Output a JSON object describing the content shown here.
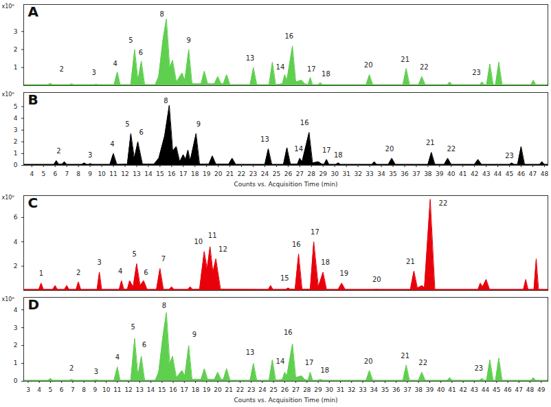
{
  "chart_data": [
    {
      "type": "area",
      "title": "A",
      "ylabel": "x10⁶",
      "color": "#5fcf4f",
      "tick_labels": "y",
      "xlim": [
        2.6,
        49.6
      ],
      "ylim": [
        0,
        4.5
      ],
      "yticks": [
        1,
        2,
        3
      ],
      "x": [
        2.6,
        4.8,
        5.0,
        5.2,
        6.7,
        6.9,
        7.1,
        8.9,
        9.1,
        9.3,
        10.7,
        11.0,
        11.25,
        12.2,
        12.55,
        12.85,
        13.15,
        13.45,
        14.4,
        14.7,
        15.1,
        15.4,
        15.7,
        15.95,
        16.3,
        16.8,
        17.05,
        17.4,
        17.7,
        18.5,
        18.8,
        19.1,
        19.7,
        20.0,
        20.3,
        20.5,
        20.8,
        21.1,
        22.9,
        23.2,
        23.5,
        24.6,
        24.9,
        25.2,
        25.8,
        26.0,
        26.2,
        26.7,
        27.0,
        27.5,
        27.8,
        28.1,
        28.3,
        28.5,
        29.0,
        29.2,
        29.4,
        33.3,
        33.6,
        33.9,
        36.6,
        36.9,
        37.2,
        38.0,
        38.3,
        38.6,
        40.6,
        40.8,
        41.0,
        43.5,
        43.7,
        43.9,
        44.1,
        44.4,
        44.7,
        44.9,
        45.2,
        45.5,
        48.1,
        48.3,
        48.5,
        49.6
      ],
      "values": [
        0.05,
        0.05,
        0.12,
        0.05,
        0.05,
        0.1,
        0.05,
        0.05,
        0.08,
        0.05,
        0.05,
        0.75,
        0.05,
        0.05,
        2.0,
        0.3,
        1.35,
        0.05,
        0.05,
        0.5,
        2.6,
        3.7,
        1.0,
        1.4,
        0.2,
        0.7,
        0.3,
        2.0,
        0.1,
        0.1,
        0.8,
        0.1,
        0.1,
        0.5,
        0.1,
        0.1,
        0.6,
        0.05,
        0.05,
        1.0,
        0.05,
        0.05,
        1.3,
        0.05,
        0.1,
        0.6,
        0.3,
        2.2,
        0.2,
        0.3,
        0.1,
        0.05,
        0.45,
        0.05,
        0.05,
        0.15,
        0.05,
        0.05,
        0.6,
        0.05,
        0.05,
        0.95,
        0.05,
        0.05,
        0.5,
        0.05,
        0.05,
        0.2,
        0.05,
        0.05,
        0.2,
        0.05,
        0.05,
        1.2,
        0.05,
        0.05,
        1.3,
        0.05,
        0.05,
        0.3,
        0.05,
        0.05
      ],
      "annotations": [
        {
          "text": "2",
          "x": 6.0,
          "y": 0.8
        },
        {
          "text": "3",
          "x": 8.9,
          "y": 0.6
        },
        {
          "text": "4",
          "x": 10.8,
          "y": 1.1
        },
        {
          "text": "5",
          "x": 12.2,
          "y": 2.4
        },
        {
          "text": "6",
          "x": 13.1,
          "y": 1.7
        },
        {
          "text": "8",
          "x": 15.0,
          "y": 3.85
        },
        {
          "text": "9",
          "x": 17.4,
          "y": 2.4
        },
        {
          "text": "13",
          "x": 22.9,
          "y": 1.4
        },
        {
          "text": "14",
          "x": 25.6,
          "y": 0.9
        },
        {
          "text": "16",
          "x": 26.4,
          "y": 2.6
        },
        {
          "text": "17",
          "x": 28.4,
          "y": 0.8
        },
        {
          "text": "18",
          "x": 29.7,
          "y": 0.5
        },
        {
          "text": "20",
          "x": 33.5,
          "y": 1.0
        },
        {
          "text": "21",
          "x": 36.8,
          "y": 1.3
        },
        {
          "text": "22",
          "x": 38.5,
          "y": 0.9
        },
        {
          "text": "23",
          "x": 43.2,
          "y": 0.6
        }
      ]
    },
    {
      "type": "area",
      "title": "B",
      "ylabel": "x10⁶",
      "color": "#000000",
      "x_label": "Counts vs. Acquisition Time (min)",
      "xlim": [
        3.3,
        48.3
      ],
      "ylim": [
        0,
        6.2
      ],
      "yticks": [
        0,
        1,
        2,
        3,
        4,
        5
      ],
      "xticks": [
        4,
        5,
        6,
        7,
        8,
        9,
        10,
        11,
        12,
        13,
        14,
        15,
        16,
        17,
        18,
        19,
        20,
        21,
        22,
        23,
        24,
        25,
        26,
        27,
        28,
        29,
        30,
        31,
        32,
        33,
        34,
        35,
        36,
        37,
        38,
        39,
        40,
        41,
        42,
        43,
        44,
        45,
        46,
        47,
        48
      ],
      "x": [
        3.3,
        5.9,
        6.1,
        6.3,
        6.6,
        6.8,
        7.0,
        8.3,
        8.5,
        8.7,
        8.9,
        9.0,
        9.2,
        10.7,
        11.0,
        11.3,
        12.2,
        12.5,
        12.8,
        13.1,
        13.5,
        14.5,
        14.9,
        15.4,
        15.8,
        16.1,
        16.4,
        16.7,
        17.0,
        17.2,
        17.4,
        17.6,
        18.1,
        18.4,
        19.2,
        19.5,
        19.8,
        20.9,
        21.2,
        21.5,
        24.0,
        24.3,
        24.6,
        25.6,
        25.9,
        26.2,
        26.8,
        27.0,
        27.2,
        27.8,
        28.1,
        28.6,
        28.9,
        29.1,
        29.3,
        29.5,
        30.1,
        30.3,
        30.5,
        33.2,
        33.4,
        33.6,
        34.6,
        34.9,
        35.2,
        38.0,
        38.3,
        38.6,
        39.4,
        39.7,
        40.0,
        42.0,
        42.3,
        42.6,
        45.0,
        45.2,
        45.4,
        45.7,
        46.0,
        46.3,
        47.6,
        47.8,
        48.0,
        48.3
      ],
      "values": [
        0.08,
        0.08,
        0.4,
        0.1,
        0.1,
        0.3,
        0.08,
        0.08,
        0.2,
        0.08,
        0.08,
        0.15,
        0.08,
        0.08,
        1.0,
        0.08,
        0.1,
        2.7,
        0.6,
        2.0,
        0.1,
        0.1,
        0.6,
        2.5,
        5.1,
        1.2,
        1.6,
        0.3,
        0.9,
        0.5,
        1.3,
        0.4,
        2.7,
        0.1,
        0.1,
        0.8,
        0.1,
        0.1,
        0.6,
        0.08,
        0.08,
        1.4,
        0.08,
        0.08,
        1.5,
        0.1,
        0.1,
        0.6,
        0.3,
        2.8,
        0.2,
        0.3,
        0.1,
        0.1,
        0.5,
        0.08,
        0.08,
        0.2,
        0.08,
        0.08,
        0.3,
        0.08,
        0.08,
        0.6,
        0.08,
        0.08,
        1.1,
        0.08,
        0.08,
        0.6,
        0.08,
        0.08,
        0.5,
        0.08,
        0.08,
        0.2,
        0.08,
        0.08,
        1.6,
        0.08,
        0.08,
        0.3,
        0.08,
        0.08
      ],
      "annotations": [
        {
          "text": "2",
          "x": 6.3,
          "y": 1.0
        },
        {
          "text": "3",
          "x": 9.0,
          "y": 0.7
        },
        {
          "text": "4",
          "x": 10.9,
          "y": 1.6
        },
        {
          "text": "5",
          "x": 12.2,
          "y": 3.3
        },
        {
          "text": "6",
          "x": 13.4,
          "y": 2.6
        },
        {
          "text": "8",
          "x": 15.5,
          "y": 5.3
        },
        {
          "text": "9",
          "x": 18.3,
          "y": 3.3
        },
        {
          "text": "13",
          "x": 24.0,
          "y": 2.0
        },
        {
          "text": "14",
          "x": 26.9,
          "y": 1.2
        },
        {
          "text": "16",
          "x": 27.4,
          "y": 3.4
        },
        {
          "text": "17",
          "x": 29.3,
          "y": 1.1
        },
        {
          "text": "18",
          "x": 30.3,
          "y": 0.7
        },
        {
          "text": "20",
          "x": 34.7,
          "y": 1.2
        },
        {
          "text": "21",
          "x": 38.2,
          "y": 1.7
        },
        {
          "text": "22",
          "x": 40.0,
          "y": 1.2
        },
        {
          "text": "23",
          "x": 45.0,
          "y": 0.6
        }
      ]
    },
    {
      "type": "area",
      "title": "C",
      "ylabel": "x10⁶",
      "color": "#e8000b",
      "tick_labels": "y",
      "xlim": [
        3.3,
        48.3
      ],
      "ylim": [
        0,
        7.8
      ],
      "yticks": [
        2,
        4,
        6
      ],
      "x": [
        3.3,
        4.6,
        4.8,
        5.0,
        5.8,
        6.0,
        6.2,
        6.8,
        7.0,
        7.2,
        7.8,
        8.0,
        8.2,
        9.6,
        9.8,
        10.0,
        11.5,
        11.7,
        11.9,
        12.2,
        12.4,
        12.7,
        13.0,
        13.3,
        13.6,
        13.9,
        14.7,
        15.0,
        15.3,
        15.8,
        16.0,
        16.2,
        17.4,
        17.6,
        17.8,
        18.4,
        18.8,
        19.05,
        19.3,
        19.55,
        19.8,
        20.2,
        24.3,
        24.5,
        24.7,
        25.8,
        26.0,
        26.2,
        26.6,
        26.9,
        27.2,
        27.9,
        28.2,
        28.6,
        29.0,
        29.3,
        30.3,
        30.6,
        30.9,
        33.4,
        33.6,
        33.8,
        36.5,
        36.8,
        37.1,
        37.5,
        37.7,
        38.2,
        38.6,
        42.3,
        42.5,
        42.7,
        43.0,
        43.3,
        46.2,
        46.4,
        46.6,
        47.1,
        47.3,
        47.5,
        48.3
      ],
      "values": [
        0.08,
        0.08,
        0.6,
        0.08,
        0.08,
        0.4,
        0.08,
        0.08,
        0.4,
        0.08,
        0.08,
        0.7,
        0.08,
        0.08,
        1.5,
        0.08,
        0.08,
        0.8,
        0.1,
        0.1,
        0.8,
        0.3,
        2.2,
        0.4,
        0.8,
        0.08,
        0.08,
        1.8,
        0.08,
        0.08,
        0.3,
        0.08,
        0.08,
        0.3,
        0.08,
        0.1,
        3.2,
        1.8,
        3.6,
        1.5,
        2.6,
        0.1,
        0.08,
        0.4,
        0.08,
        0.08,
        0.2,
        0.1,
        0.1,
        3.0,
        0.1,
        0.1,
        4.0,
        0.3,
        1.5,
        0.08,
        0.08,
        0.6,
        0.08,
        0.08,
        0.1,
        0.08,
        0.08,
        1.6,
        0.2,
        0.4,
        0.2,
        7.5,
        0.08,
        0.08,
        0.6,
        0.3,
        0.9,
        0.08,
        0.08,
        0.9,
        0.08,
        0.08,
        2.6,
        0.08,
        0.08
      ],
      "annotations": [
        {
          "text": "1",
          "x": 4.8,
          "y": 1.2
        },
        {
          "text": "2",
          "x": 8.0,
          "y": 1.3
        },
        {
          "text": "3",
          "x": 9.8,
          "y": 2.1
        },
        {
          "text": "4",
          "x": 11.6,
          "y": 1.4
        },
        {
          "text": "5",
          "x": 12.8,
          "y": 2.8
        },
        {
          "text": "6",
          "x": 13.8,
          "y": 1.3
        },
        {
          "text": "7",
          "x": 15.3,
          "y": 2.4
        },
        {
          "text": "10",
          "x": 18.3,
          "y": 3.8
        },
        {
          "text": "11",
          "x": 19.5,
          "y": 4.3
        },
        {
          "text": "12",
          "x": 20.4,
          "y": 3.2
        },
        {
          "text": "15",
          "x": 25.7,
          "y": 0.8
        },
        {
          "text": "16",
          "x": 26.7,
          "y": 3.6
        },
        {
          "text": "17",
          "x": 28.3,
          "y": 4.6
        },
        {
          "text": "18",
          "x": 29.2,
          "y": 2.1
        },
        {
          "text": "19",
          "x": 30.8,
          "y": 1.2
        },
        {
          "text": "20",
          "x": 33.6,
          "y": 0.7
        },
        {
          "text": "21",
          "x": 36.5,
          "y": 2.2
        },
        {
          "text": "22",
          "x": 39.3,
          "y": 7.0
        }
      ]
    },
    {
      "type": "area",
      "title": "D",
      "ylabel": "x10⁶",
      "color": "#5fcf4f",
      "x_label": "Counts vs. Acquisition Time (min)",
      "xlim": [
        2.6,
        49.6
      ],
      "ylim": [
        0,
        4.7
      ],
      "yticks": [
        0,
        1,
        2,
        3,
        4
      ],
      "xticks": [
        3,
        4,
        5,
        6,
        7,
        8,
        9,
        10,
        11,
        12,
        13,
        14,
        15,
        16,
        17,
        18,
        19,
        20,
        21,
        22,
        23,
        24,
        25,
        26,
        27,
        28,
        29,
        30,
        31,
        32,
        33,
        34,
        35,
        36,
        37,
        38,
        39,
        40,
        41,
        42,
        43,
        44,
        45,
        46,
        47,
        48,
        49
      ],
      "x": [
        2.6,
        4.8,
        5.0,
        5.2,
        6.7,
        6.9,
        7.1,
        8.9,
        9.1,
        9.3,
        10.7,
        11.0,
        11.25,
        12.2,
        12.55,
        12.85,
        13.15,
        13.45,
        14.4,
        14.7,
        15.1,
        15.4,
        15.7,
        15.95,
        16.3,
        16.8,
        17.05,
        17.4,
        17.7,
        18.5,
        18.8,
        19.1,
        19.7,
        20.0,
        20.3,
        20.5,
        20.8,
        21.1,
        22.9,
        23.2,
        23.5,
        24.6,
        24.9,
        25.2,
        25.8,
        26.0,
        26.2,
        26.7,
        27.0,
        27.5,
        27.8,
        28.1,
        28.3,
        28.5,
        29.0,
        29.2,
        29.4,
        33.3,
        33.6,
        33.9,
        36.6,
        36.9,
        37.2,
        38.0,
        38.3,
        38.6,
        40.6,
        40.8,
        41.0,
        43.5,
        43.7,
        43.9,
        44.1,
        44.4,
        44.7,
        44.9,
        45.2,
        45.5,
        48.1,
        48.3,
        48.5,
        49.6
      ],
      "values": [
        0.05,
        0.05,
        0.15,
        0.05,
        0.05,
        0.1,
        0.05,
        0.05,
        0.08,
        0.05,
        0.05,
        0.8,
        0.05,
        0.05,
        2.4,
        0.3,
        1.4,
        0.05,
        0.05,
        0.5,
        2.6,
        3.85,
        1.0,
        1.4,
        0.2,
        0.6,
        0.3,
        2.0,
        0.1,
        0.1,
        0.7,
        0.1,
        0.1,
        0.5,
        0.1,
        0.1,
        0.7,
        0.05,
        0.05,
        1.0,
        0.05,
        0.05,
        1.2,
        0.05,
        0.1,
        0.5,
        0.3,
        2.1,
        0.2,
        0.3,
        0.1,
        0.05,
        0.5,
        0.05,
        0.05,
        0.1,
        0.05,
        0.05,
        0.6,
        0.05,
        0.05,
        0.9,
        0.05,
        0.05,
        0.5,
        0.05,
        0.05,
        0.2,
        0.05,
        0.05,
        0.15,
        0.05,
        0.05,
        1.2,
        0.05,
        0.05,
        1.3,
        0.05,
        0.05,
        0.2,
        0.05,
        0.05
      ],
      "annotations": [
        {
          "text": "2",
          "x": 6.9,
          "y": 0.6
        },
        {
          "text": "3",
          "x": 9.1,
          "y": 0.4
        },
        {
          "text": "4",
          "x": 11.0,
          "y": 1.2
        },
        {
          "text": "5",
          "x": 12.4,
          "y": 2.9
        },
        {
          "text": "6",
          "x": 13.4,
          "y": 1.9
        },
        {
          "text": "8",
          "x": 15.2,
          "y": 4.1
        },
        {
          "text": "9",
          "x": 17.9,
          "y": 2.5
        },
        {
          "text": "13",
          "x": 22.9,
          "y": 1.5
        },
        {
          "text": "14",
          "x": 25.6,
          "y": 1.0
        },
        {
          "text": "16",
          "x": 26.3,
          "y": 2.6
        },
        {
          "text": "17",
          "x": 28.2,
          "y": 0.9
        },
        {
          "text": "18",
          "x": 29.6,
          "y": 0.5
        },
        {
          "text": "20",
          "x": 33.5,
          "y": 1.0
        },
        {
          "text": "21",
          "x": 36.8,
          "y": 1.3
        },
        {
          "text": "22",
          "x": 38.4,
          "y": 0.9
        },
        {
          "text": "23",
          "x": 43.4,
          "y": 0.6
        }
      ]
    }
  ]
}
